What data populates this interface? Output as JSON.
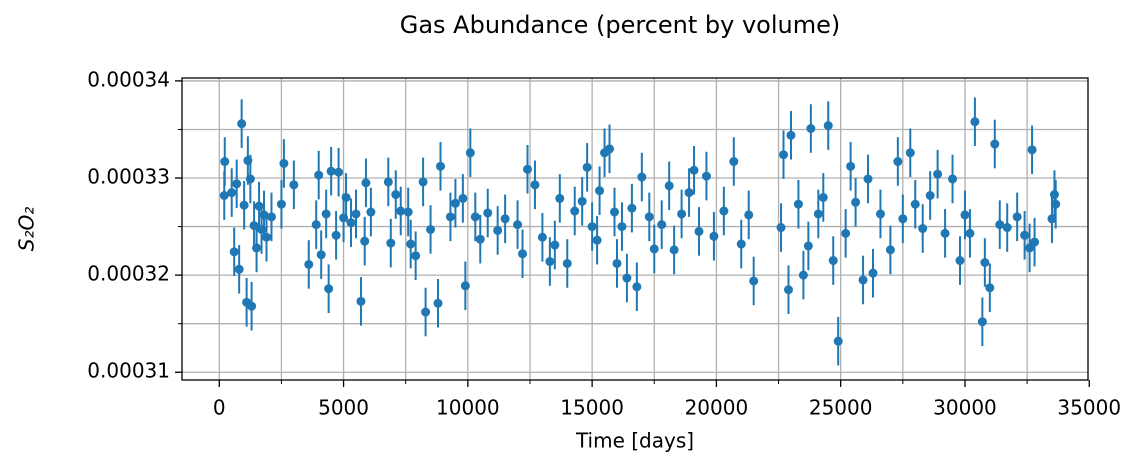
{
  "chart_data": {
    "type": "errorbar",
    "title": "Gas Abundance (percent by volume)",
    "xlabel": "Time [days]",
    "ylabel": "S₂O₂",
    "color": "#1f77b4",
    "error": 2.5e-06,
    "xlim": [
      -1500,
      34950
    ],
    "ylim": [
      0.0003092,
      0.0003403
    ],
    "xticks": [
      0,
      5000,
      10000,
      15000,
      20000,
      25000,
      30000,
      35000
    ],
    "yticks": [
      0.00031,
      0.00032,
      0.00033,
      0.00034
    ],
    "xminor": [
      2500,
      7500,
      12500,
      17500,
      22500,
      27500,
      32500
    ],
    "yminor": [
      0.000315,
      0.000325,
      0.000335
    ],
    "grid": true,
    "x": [
      200,
      220,
      500,
      600,
      700,
      800,
      900,
      1000,
      1100,
      1150,
      1250,
      1300,
      1400,
      1500,
      1600,
      1700,
      1800,
      1900,
      2100,
      2500,
      2600,
      3000,
      3600,
      3900,
      4000,
      4100,
      4300,
      4400,
      4500,
      4700,
      4800,
      5000,
      5100,
      5300,
      5500,
      5700,
      5850,
      5900,
      6100,
      6800,
      6900,
      7100,
      7300,
      7600,
      7700,
      7900,
      8200,
      8300,
      8500,
      8800,
      8900,
      9300,
      9500,
      9800,
      9900,
      10100,
      10300,
      10500,
      10800,
      11200,
      11500,
      12000,
      12200,
      12400,
      12700,
      13000,
      13300,
      13500,
      13700,
      14000,
      14300,
      14600,
      14800,
      15000,
      15200,
      15300,
      15500,
      15700,
      15900,
      16000,
      16200,
      16400,
      16600,
      16800,
      17000,
      17300,
      17500,
      17800,
      18100,
      18300,
      18600,
      18900,
      19100,
      19300,
      19600,
      19900,
      20300,
      20700,
      21000,
      21300,
      21500,
      22600,
      22700,
      22900,
      23000,
      23300,
      23500,
      23700,
      23800,
      24100,
      24300,
      24500,
      24700,
      24900,
      25200,
      25400,
      25600,
      25900,
      26100,
      26300,
      26600,
      27000,
      27300,
      27500,
      27800,
      28000,
      28300,
      28600,
      28900,
      29200,
      29500,
      29800,
      30000,
      30200,
      30400,
      30700,
      30800,
      31000,
      31200,
      31400,
      31700,
      32100,
      32400,
      32600,
      32700,
      32800,
      33500,
      33600,
      33650
    ],
    "values": [
      0.0003282,
      0.0003317,
      0.0003285,
      0.0003224,
      0.0003294,
      0.0003206,
      0.0003356,
      0.0003272,
      0.0003172,
      0.0003318,
      0.0003299,
      0.0003168,
      0.0003251,
      0.0003228,
      0.0003271,
      0.0003247,
      0.0003262,
      0.0003239,
      0.000326,
      0.0003273,
      0.0003315,
      0.0003293,
      0.0003211,
      0.0003252,
      0.0003303,
      0.0003221,
      0.0003263,
      0.0003186,
      0.0003307,
      0.0003241,
      0.0003306,
      0.0003259,
      0.000328,
      0.0003254,
      0.0003263,
      0.0003173,
      0.0003235,
      0.0003295,
      0.0003265,
      0.0003296,
      0.0003233,
      0.0003283,
      0.0003266,
      0.0003265,
      0.0003232,
      0.000322,
      0.0003296,
      0.0003162,
      0.0003247,
      0.0003171,
      0.0003312,
      0.000326,
      0.0003274,
      0.0003279,
      0.0003189,
      0.0003326,
      0.000326,
      0.0003237,
      0.0003264,
      0.0003246,
      0.0003258,
      0.0003252,
      0.0003222,
      0.0003309,
      0.0003293,
      0.0003239,
      0.0003214,
      0.0003231,
      0.0003279,
      0.0003212,
      0.0003266,
      0.0003276,
      0.0003311,
      0.000325,
      0.0003236,
      0.0003287,
      0.0003326,
      0.000333,
      0.0003265,
      0.0003212,
      0.000325,
      0.0003197,
      0.0003269,
      0.0003188,
      0.0003301,
      0.000326,
      0.0003227,
      0.0003252,
      0.0003292,
      0.0003226,
      0.0003263,
      0.0003285,
      0.0003308,
      0.0003245,
      0.0003302,
      0.000324,
      0.0003266,
      0.0003317,
      0.0003232,
      0.0003262,
      0.0003194,
      0.0003249,
      0.0003324,
      0.0003185,
      0.0003344,
      0.0003273,
      0.00032,
      0.000323,
      0.0003351,
      0.0003263,
      0.000328,
      0.0003354,
      0.0003215,
      0.0003132,
      0.0003243,
      0.0003312,
      0.0003275,
      0.0003195,
      0.0003299,
      0.0003202,
      0.0003263,
      0.0003226,
      0.0003317,
      0.0003258,
      0.0003326,
      0.0003273,
      0.0003248,
      0.0003282,
      0.0003304,
      0.0003243,
      0.0003299,
      0.0003215,
      0.0003262,
      0.0003243,
      0.0003358,
      0.0003152,
      0.0003213,
      0.0003187,
      0.0003335,
      0.0003252,
      0.0003249,
      0.000326,
      0.0003241,
      0.0003228,
      0.0003329,
      0.0003234,
      0.0003258,
      0.0003283,
      0.0003273
    ]
  }
}
